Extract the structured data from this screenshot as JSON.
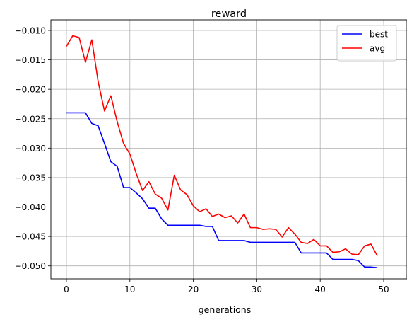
{
  "chart_data": {
    "type": "line",
    "title": "reward",
    "xlabel": "generations",
    "ylabel": "",
    "xlim": [
      -2.45,
      51.45
    ],
    "ylim": [
      -0.0522,
      -0.0088
    ],
    "xticks": [
      0,
      10,
      20,
      30,
      40,
      50
    ],
    "yticks": [
      -0.01,
      -0.015,
      -0.02,
      -0.025,
      -0.03,
      -0.035,
      -0.04,
      -0.045,
      -0.05
    ],
    "ytick_labels": [
      "−0.010",
      "−0.015",
      "−0.020",
      "−0.025",
      "−0.030",
      "−0.035",
      "−0.040",
      "−0.045",
      "−0.050"
    ],
    "xtick_labels": [
      "0",
      "10",
      "20",
      "30",
      "40",
      "50"
    ],
    "grid": true,
    "legend_position": "top-right",
    "x": [
      0,
      1,
      2,
      3,
      4,
      5,
      6,
      7,
      8,
      9,
      10,
      11,
      12,
      13,
      14,
      15,
      16,
      17,
      18,
      19,
      20,
      21,
      22,
      23,
      24,
      25,
      26,
      27,
      28,
      29,
      30,
      31,
      32,
      33,
      34,
      35,
      36,
      37,
      38,
      39,
      40,
      41,
      42,
      43,
      44,
      45,
      46,
      47,
      48,
      49
    ],
    "series": [
      {
        "name": "best",
        "color": "#0000ff",
        "values": [
          -0.024,
          -0.024,
          -0.024,
          -0.024,
          -0.0258,
          -0.0262,
          -0.0292,
          -0.0323,
          -0.0331,
          -0.0367,
          -0.0367,
          -0.0376,
          -0.0386,
          -0.0402,
          -0.0402,
          -0.042,
          -0.0431,
          -0.0431,
          -0.0431,
          -0.0431,
          -0.0431,
          -0.0431,
          -0.0433,
          -0.0433,
          -0.0457,
          -0.0457,
          -0.0457,
          -0.0457,
          -0.0457,
          -0.046,
          -0.046,
          -0.046,
          -0.046,
          -0.046,
          -0.046,
          -0.046,
          -0.046,
          -0.0478,
          -0.0478,
          -0.0478,
          -0.0478,
          -0.0478,
          -0.0489,
          -0.0489,
          -0.0489,
          -0.0489,
          -0.0491,
          -0.0502,
          -0.0502,
          -0.0503
        ]
      },
      {
        "name": "avg",
        "color": "#ff0000",
        "values": [
          -0.0127,
          -0.0109,
          -0.0112,
          -0.0154,
          -0.0116,
          -0.0187,
          -0.0237,
          -0.0211,
          -0.0255,
          -0.0292,
          -0.031,
          -0.0343,
          -0.0372,
          -0.0357,
          -0.0378,
          -0.0385,
          -0.0405,
          -0.0346,
          -0.0371,
          -0.0379,
          -0.0398,
          -0.0408,
          -0.0403,
          -0.0416,
          -0.0412,
          -0.0418,
          -0.0415,
          -0.0427,
          -0.0412,
          -0.0435,
          -0.0435,
          -0.0438,
          -0.0437,
          -0.0438,
          -0.0451,
          -0.0435,
          -0.0446,
          -0.046,
          -0.0462,
          -0.0455,
          -0.0466,
          -0.0466,
          -0.0477,
          -0.0476,
          -0.0471,
          -0.048,
          -0.0481,
          -0.0466,
          -0.0463,
          -0.0483
        ]
      }
    ]
  }
}
